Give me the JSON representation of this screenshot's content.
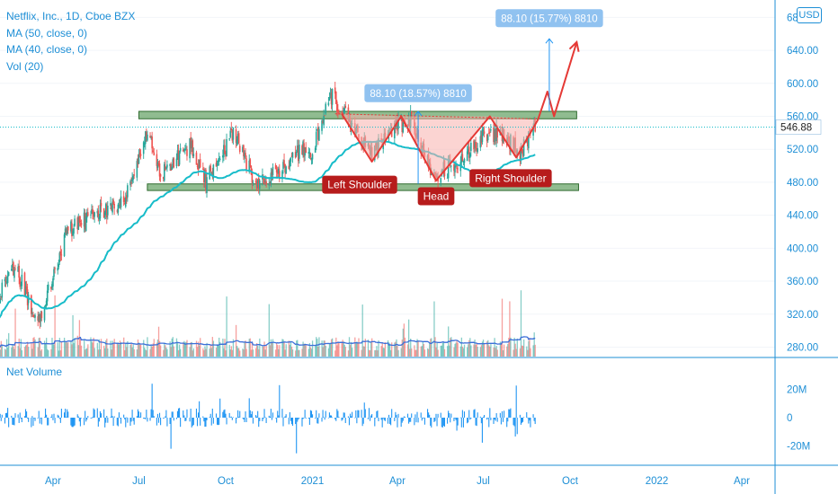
{
  "legend": {
    "symbol_line": "Netflix, Inc., 1D, Cboe BZX",
    "ma50": "MA (50, close, 0)",
    "ma40": "MA (40, close, 0)",
    "vol": "Vol (20)"
  },
  "currency": "USD",
  "net_volume_title": "Net Volume",
  "colors": {
    "up": "#26a69a",
    "down": "#ef5350",
    "ma": "#17bcc9",
    "vol_ma": "#3b6fd8",
    "net_volume": "#2196f3",
    "zone_fill": "#6ba56b",
    "zone_border": "#2f6b2f",
    "pattern": "#e53935",
    "label_bg": "#b71c1c",
    "measure_bg": "#90c2f0",
    "price_label_bg": "#ffffff"
  },
  "chart_data": [
    {
      "type": "candlestick",
      "title": "Netflix, Inc., 1D, Cboe BZX",
      "x_axis": {
        "tick_labels": [
          "Apr",
          "Jul",
          "Oct",
          "2021",
          "Apr",
          "Jul",
          "Oct",
          "2022",
          "Apr"
        ],
        "range": [
          "2020-02-01",
          "2022-06-01"
        ]
      },
      "y_axis": {
        "tick_labels": [
          "280.00",
          "320.00",
          "360.00",
          "400.00",
          "440.00",
          "480.00",
          "520.00",
          "560.00",
          "600.00",
          "640.00",
          "680.00"
        ],
        "range": [
          262,
          700
        ],
        "unit": "USD"
      },
      "last_price": "546.88",
      "series": [
        {
          "name": "MA (50, close, 0)"
        },
        {
          "name": "MA (40, close, 0)"
        },
        {
          "name": "Vol (20)"
        }
      ],
      "price_path": [
        [
          "2020-02-01",
          335
        ],
        [
          "2020-02-20",
          380
        ],
        [
          "2020-03-16",
          310
        ],
        [
          "2020-04-15",
          420
        ],
        [
          "2020-05-15",
          440
        ],
        [
          "2020-06-15",
          455
        ],
        [
          "2020-07-10",
          540
        ],
        [
          "2020-07-25",
          490
        ],
        [
          "2020-08-25",
          525
        ],
        [
          "2020-09-10",
          480
        ],
        [
          "2020-10-10",
          540
        ],
        [
          "2020-11-01",
          480
        ],
        [
          "2020-12-01",
          495
        ],
        [
          "2020-12-20",
          520
        ],
        [
          "2021-01-01",
          520
        ],
        [
          "2021-01-20",
          586
        ],
        [
          "2021-02-10",
          555
        ],
        [
          "2021-03-05",
          515
        ],
        [
          "2021-04-01",
          550
        ],
        [
          "2021-04-15",
          555
        ],
        [
          "2021-05-05",
          500
        ],
        [
          "2021-05-12",
          490
        ],
        [
          "2021-06-01",
          500
        ],
        [
          "2021-07-01",
          535
        ],
        [
          "2021-07-20",
          540
        ],
        [
          "2021-08-10",
          515
        ],
        [
          "2021-08-25",
          550
        ]
      ],
      "annotations": {
        "zones": [
          {
            "from": "2020-07-01",
            "to": "2021-10-08",
            "top": 566,
            "bottom": 557
          },
          {
            "from": "2020-07-10",
            "to": "2021-10-10",
            "top": 478,
            "bottom": 470
          }
        ],
        "neckline": [
          [
            "2021-01-25",
            563
          ],
          [
            "2021-08-20",
            557
          ]
        ],
        "pattern_points": [
          [
            "2021-02-01",
            563
          ],
          [
            "2021-03-05",
            505
          ],
          [
            "2021-04-05",
            560
          ],
          [
            "2021-05-12",
            482
          ],
          [
            "2021-07-08",
            560
          ],
          [
            "2021-08-05",
            510
          ],
          [
            "2021-08-28",
            556
          ],
          [
            "2021-09-07",
            590
          ],
          [
            "2021-09-14",
            560
          ],
          [
            "2021-10-08",
            650
          ]
        ],
        "measures": [
          {
            "text": "88.10 (18.57%) 8810",
            "date": "2021-04-23",
            "from": 478,
            "to": 566
          },
          {
            "text": "88.10 (15.77%) 8810",
            "date": "2021-09-09",
            "from": 566,
            "to": 654
          }
        ],
        "labels": [
          "Left Shoulder",
          "Head",
          "Right Shoulder"
        ]
      }
    },
    {
      "type": "bar",
      "title": "Net Volume",
      "y_axis": {
        "tick_labels": [
          "20M",
          "0",
          "-20M"
        ],
        "range": [
          -35,
          35
        ]
      }
    }
  ]
}
